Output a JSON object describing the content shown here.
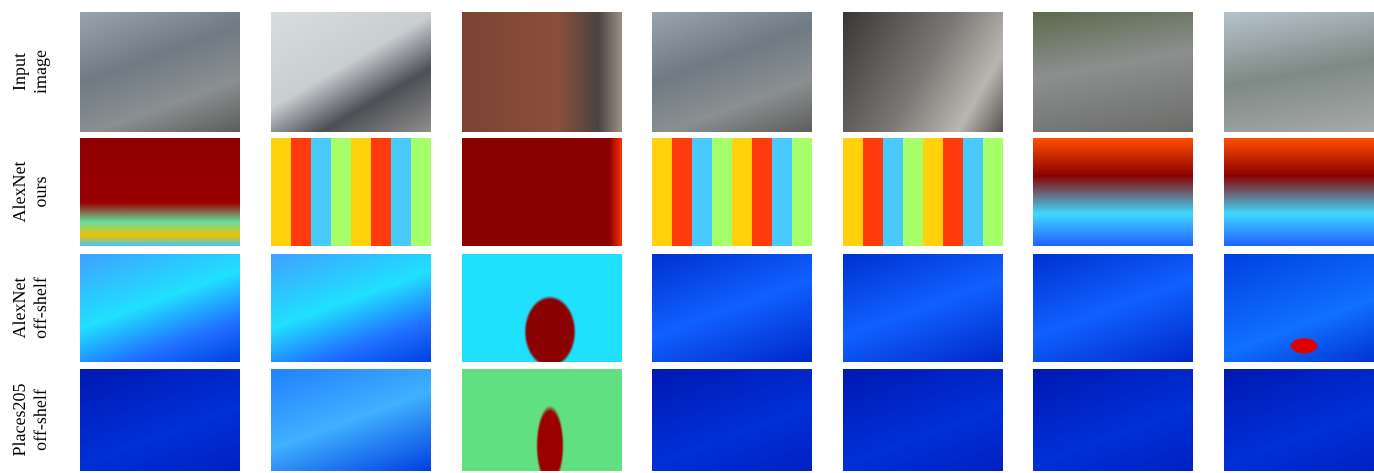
{
  "rows": [
    {
      "label": [
        "Input",
        "image"
      ]
    },
    {
      "label": [
        "AlexNet",
        "ours"
      ]
    },
    {
      "label": [
        "AlexNet",
        "off-shelf"
      ]
    },
    {
      "label": [
        "Places205",
        "off-shelf"
      ]
    }
  ]
}
